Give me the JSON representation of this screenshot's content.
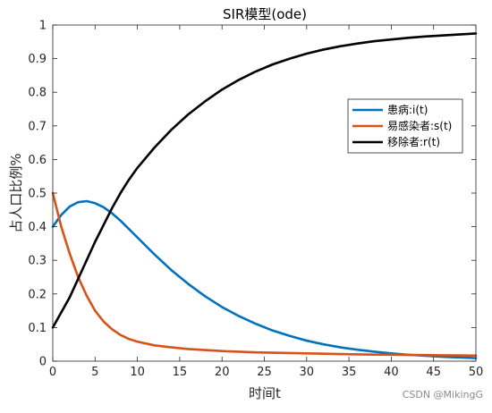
{
  "chart_data": {
    "type": "line",
    "title": "SIR模型(ode)",
    "xlabel": "时间t",
    "ylabel": "占人口比例%",
    "xlim": [
      0,
      50
    ],
    "ylim": [
      0,
      1
    ],
    "xticks": [
      0,
      5,
      10,
      15,
      20,
      25,
      30,
      35,
      40,
      45,
      50
    ],
    "yticks": [
      0,
      0.1,
      0.2,
      0.3,
      0.4,
      0.5,
      0.6,
      0.7,
      0.8,
      0.9,
      1
    ],
    "grid": false,
    "legend_position": "top-right",
    "series": [
      {
        "name": "患病:i(t)",
        "color": "#0072BD",
        "x": [
          0,
          1,
          2,
          3,
          4,
          5,
          6,
          7,
          8,
          9,
          10,
          12,
          14,
          16,
          18,
          20,
          22,
          24,
          26,
          28,
          30,
          32,
          34,
          36,
          38,
          40,
          42,
          44,
          46,
          48,
          50
        ],
        "values": [
          0.4,
          0.435,
          0.46,
          0.473,
          0.476,
          0.47,
          0.458,
          0.44,
          0.418,
          0.393,
          0.368,
          0.318,
          0.271,
          0.23,
          0.193,
          0.161,
          0.134,
          0.111,
          0.091,
          0.075,
          0.061,
          0.05,
          0.041,
          0.034,
          0.028,
          0.023,
          0.019,
          0.016,
          0.013,
          0.011,
          0.009
        ]
      },
      {
        "name": "易感染者:s(t)",
        "color": "#D95319",
        "x": [
          0,
          1,
          2,
          3,
          4,
          5,
          6,
          7,
          8,
          9,
          10,
          12,
          14,
          16,
          18,
          20,
          22,
          24,
          26,
          28,
          30,
          32,
          34,
          36,
          38,
          40,
          42,
          44,
          46,
          48,
          50
        ],
        "values": [
          0.5,
          0.4,
          0.32,
          0.25,
          0.195,
          0.15,
          0.118,
          0.095,
          0.078,
          0.066,
          0.058,
          0.047,
          0.041,
          0.036,
          0.033,
          0.03,
          0.028,
          0.026,
          0.025,
          0.024,
          0.023,
          0.022,
          0.021,
          0.02,
          0.0195,
          0.019,
          0.0185,
          0.018,
          0.0175,
          0.017,
          0.0165
        ]
      },
      {
        "name": "移除者:r(t)",
        "color": "#000000",
        "x": [
          0,
          1,
          2,
          3,
          4,
          5,
          6,
          7,
          8,
          9,
          10,
          12,
          14,
          16,
          18,
          20,
          22,
          24,
          26,
          28,
          30,
          32,
          34,
          36,
          38,
          40,
          42,
          44,
          46,
          48,
          50
        ],
        "values": [
          0.1,
          0.145,
          0.19,
          0.245,
          0.3,
          0.355,
          0.405,
          0.455,
          0.5,
          0.54,
          0.575,
          0.635,
          0.688,
          0.734,
          0.773,
          0.808,
          0.837,
          0.862,
          0.883,
          0.9,
          0.915,
          0.927,
          0.937,
          0.945,
          0.952,
          0.957,
          0.962,
          0.966,
          0.969,
          0.972,
          0.975
        ]
      }
    ]
  },
  "watermark": "CSDN @MikingG"
}
